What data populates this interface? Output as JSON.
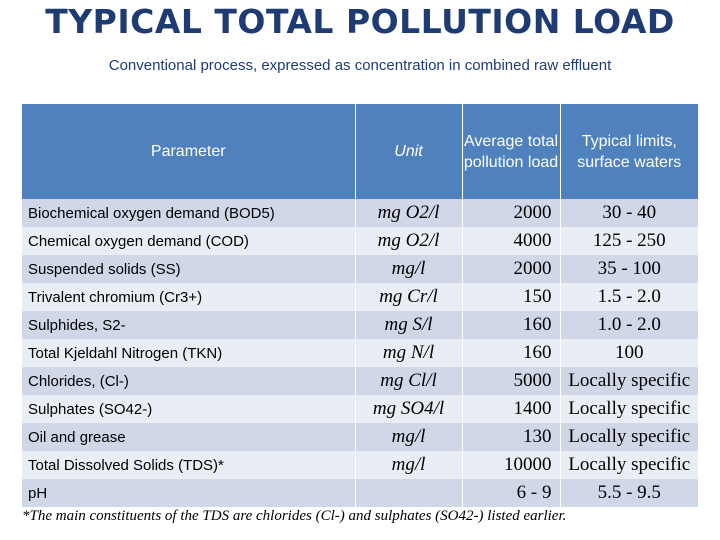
{
  "header": {
    "title": "TYPICAL TOTAL POLLUTION LOAD",
    "subtitle": "Conventional process, expressed as concentration in combined raw effluent"
  },
  "table": {
    "columns": [
      "Parameter",
      "Unit",
      "Average total pollution load",
      "Typical limits, surface waters"
    ],
    "rows": [
      {
        "parameter": "Biochemical oxygen demand (BOD5)",
        "unit": "mg O2/l",
        "load": "2000",
        "limit": "30 - 40"
      },
      {
        "parameter": "Chemical oxygen demand (COD)",
        "unit": "mg O2/l",
        "load": "4000",
        "limit": "125 - 250"
      },
      {
        "parameter": "Suspended solids (SS)",
        "unit": "mg/l",
        "load": "2000",
        "limit": "35 - 100"
      },
      {
        "parameter": "Trivalent chromium (Cr3+)",
        "unit": "mg Cr/l",
        "load": "150",
        "limit": "1.5 - 2.0"
      },
      {
        "parameter": "Sulphides, S2-",
        "unit": "mg S/l",
        "load": "160",
        "limit": "1.0 - 2.0"
      },
      {
        "parameter": "Total  Kjeldahl Nitrogen (TKN)",
        "unit": "mg N/l",
        "load": "160",
        "limit": "100"
      },
      {
        "parameter": "Chlorides,  (Cl-)",
        "unit": "mg Cl/l",
        "load": "5000",
        "limit": "Locally specific"
      },
      {
        "parameter": "Sulphates (SO42-)",
        "unit": "mg SO4/l",
        "load": "1400",
        "limit": "Locally specific"
      },
      {
        "parameter": "Oil and grease",
        "unit": "mg/l",
        "load": "130",
        "limit": "Locally specific"
      },
      {
        "parameter": "Total Dissolved Solids (TDS)*",
        "unit": "mg/l",
        "load": "10000",
        "limit": "Locally specific"
      },
      {
        "parameter": "pH",
        "unit": "",
        "load": "6 - 9",
        "limit": "5.5 - 9.5"
      }
    ]
  },
  "footnote": "*The main constituents of the TDS are chlorides (Cl-) and sulphates (SO42-) listed earlier.",
  "colors": {
    "header_bg": "#4f81bd",
    "row_odd": "#d0d8e8",
    "row_even": "#e9edf4",
    "title": "#1f3b73"
  }
}
